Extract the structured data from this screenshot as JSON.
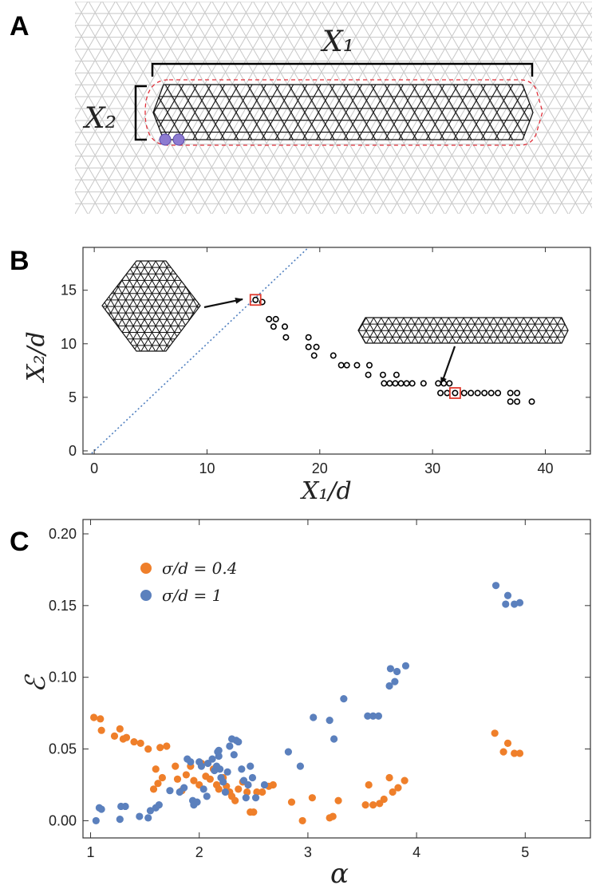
{
  "panels": {
    "a": {
      "letter": "A",
      "x1_label": "X₁",
      "x2_label": "X₂"
    },
    "b": {
      "letter": "B"
    },
    "c": {
      "letter": "C"
    }
  },
  "colors": {
    "lattice": "#c8c8c8",
    "cluster": "#111111",
    "dashed_outline": "#e0303a",
    "particle": "#8d7bd1",
    "blue_series": "#5b80bd",
    "orange_series": "#ef7f2a",
    "diagonal": "#4f7fbf",
    "highlight_box": "#e03a2e"
  },
  "chart_data": [
    {
      "type": "scatter",
      "panel": "B",
      "xlabel": "X₁/d",
      "ylabel": "X₂/d",
      "xlim": [
        -1,
        44
      ],
      "ylim": [
        -0.3,
        19
      ],
      "xticks": [
        0,
        10,
        20,
        30,
        40
      ],
      "yticks": [
        0,
        5,
        10,
        15
      ],
      "reference_line": {
        "style": "dotted",
        "slope": 1,
        "color": "#4f7fbf"
      },
      "highlighted": [
        {
          "x": 14.3,
          "y": 14.1
        },
        {
          "x": 32.0,
          "y": 5.4
        }
      ],
      "points": [
        [
          14.3,
          14.1
        ],
        [
          14.9,
          13.9
        ],
        [
          15.5,
          12.3
        ],
        [
          16.1,
          12.3
        ],
        [
          15.9,
          11.6
        ],
        [
          16.9,
          11.6
        ],
        [
          17.0,
          10.6
        ],
        [
          19.0,
          10.6
        ],
        [
          19.0,
          9.7
        ],
        [
          19.7,
          9.7
        ],
        [
          19.5,
          8.9
        ],
        [
          21.2,
          8.9
        ],
        [
          21.9,
          8.0
        ],
        [
          22.4,
          8.0
        ],
        [
          23.3,
          8.0
        ],
        [
          24.4,
          8.0
        ],
        [
          24.3,
          7.1
        ],
        [
          25.6,
          7.1
        ],
        [
          26.8,
          7.1
        ],
        [
          25.7,
          6.3
        ],
        [
          26.2,
          6.3
        ],
        [
          26.7,
          6.3
        ],
        [
          27.2,
          6.3
        ],
        [
          27.7,
          6.3
        ],
        [
          28.2,
          6.3
        ],
        [
          29.2,
          6.3
        ],
        [
          30.5,
          6.3
        ],
        [
          31.0,
          6.3
        ],
        [
          31.5,
          6.3
        ],
        [
          30.7,
          5.4
        ],
        [
          31.3,
          5.4
        ],
        [
          32.0,
          5.4
        ],
        [
          32.8,
          5.4
        ],
        [
          33.4,
          5.4
        ],
        [
          34.0,
          5.4
        ],
        [
          34.6,
          5.4
        ],
        [
          35.2,
          5.4
        ],
        [
          35.8,
          5.4
        ],
        [
          36.9,
          5.4
        ],
        [
          37.5,
          5.4
        ],
        [
          36.9,
          4.6
        ],
        [
          37.5,
          4.6
        ],
        [
          38.8,
          4.6
        ]
      ]
    },
    {
      "type": "scatter",
      "panel": "C",
      "xlabel": "α",
      "ylabel": "ℰ",
      "xlim": [
        0.93,
        5.6
      ],
      "ylim": [
        -0.012,
        0.21
      ],
      "xticks": [
        1,
        2,
        3,
        4,
        5
      ],
      "yticks": [
        "0.00",
        "0.05",
        "0.10",
        "0.15",
        "0.20"
      ],
      "legend_position": "top-left",
      "series": [
        {
          "name": "σ/d = 0.4",
          "color": "#ef7f2a",
          "points": [
            [
              1.03,
              0.072
            ],
            [
              1.09,
              0.071
            ],
            [
              1.1,
              0.063
            ],
            [
              1.22,
              0.059
            ],
            [
              1.27,
              0.064
            ],
            [
              1.3,
              0.057
            ],
            [
              1.33,
              0.058
            ],
            [
              1.4,
              0.055
            ],
            [
              1.46,
              0.054
            ],
            [
              1.53,
              0.05
            ],
            [
              1.58,
              0.022
            ],
            [
              1.6,
              0.036
            ],
            [
              1.62,
              0.026
            ],
            [
              1.64,
              0.051
            ],
            [
              1.7,
              0.052
            ],
            [
              1.66,
              0.03
            ],
            [
              1.78,
              0.038
            ],
            [
              1.8,
              0.029
            ],
            [
              1.84,
              0.021
            ],
            [
              1.88,
              0.032
            ],
            [
              1.92,
              0.038
            ],
            [
              1.95,
              0.028
            ],
            [
              2.0,
              0.025
            ],
            [
              2.02,
              0.04
            ],
            [
              2.06,
              0.031
            ],
            [
              2.1,
              0.029
            ],
            [
              2.13,
              0.036
            ],
            [
              2.16,
              0.025
            ],
            [
              2.18,
              0.022
            ],
            [
              2.22,
              0.03
            ],
            [
              2.25,
              0.024
            ],
            [
              2.28,
              0.02
            ],
            [
              2.3,
              0.017
            ],
            [
              2.33,
              0.014
            ],
            [
              2.36,
              0.022
            ],
            [
              2.4,
              0.027
            ],
            [
              2.44,
              0.02
            ],
            [
              2.47,
              0.006
            ],
            [
              2.5,
              0.006
            ],
            [
              2.53,
              0.02
            ],
            [
              2.58,
              0.02
            ],
            [
              2.64,
              0.024
            ],
            [
              2.68,
              0.025
            ],
            [
              2.85,
              0.013
            ],
            [
              2.95,
              0.0
            ],
            [
              3.04,
              0.016
            ],
            [
              3.2,
              0.002
            ],
            [
              3.23,
              0.003
            ],
            [
              3.28,
              0.014
            ],
            [
              3.53,
              0.011
            ],
            [
              3.56,
              0.025
            ],
            [
              3.6,
              0.011
            ],
            [
              3.66,
              0.012
            ],
            [
              3.7,
              0.015
            ],
            [
              3.75,
              0.03
            ],
            [
              3.78,
              0.02
            ],
            [
              3.83,
              0.023
            ],
            [
              3.89,
              0.028
            ],
            [
              4.72,
              0.061
            ],
            [
              4.8,
              0.048
            ],
            [
              4.84,
              0.054
            ],
            [
              4.9,
              0.047
            ],
            [
              4.95,
              0.047
            ]
          ]
        },
        {
          "name": "σ/d = 1",
          "color": "#5b80bd",
          "points": [
            [
              1.05,
              0.0
            ],
            [
              1.08,
              0.009
            ],
            [
              1.1,
              0.008
            ],
            [
              1.27,
              0.001
            ],
            [
              1.28,
              0.01
            ],
            [
              1.32,
              0.01
            ],
            [
              1.45,
              0.003
            ],
            [
              1.53,
              0.002
            ],
            [
              1.55,
              0.007
            ],
            [
              1.6,
              0.009
            ],
            [
              1.63,
              0.011
            ],
            [
              1.73,
              0.021
            ],
            [
              1.82,
              0.02
            ],
            [
              1.86,
              0.023
            ],
            [
              1.89,
              0.043
            ],
            [
              1.92,
              0.041
            ],
            [
              1.94,
              0.014
            ],
            [
              1.95,
              0.011
            ],
            [
              1.98,
              0.013
            ],
            [
              2.0,
              0.041
            ],
            [
              2.02,
              0.038
            ],
            [
              2.04,
              0.022
            ],
            [
              2.07,
              0.017
            ],
            [
              2.08,
              0.04
            ],
            [
              2.12,
              0.043
            ],
            [
              2.14,
              0.035
            ],
            [
              2.16,
              0.038
            ],
            [
              2.17,
              0.048
            ],
            [
              2.18,
              0.049
            ],
            [
              2.18,
              0.045
            ],
            [
              2.19,
              0.036
            ],
            [
              2.2,
              0.03
            ],
            [
              2.22,
              0.027
            ],
            [
              2.24,
              0.02
            ],
            [
              2.26,
              0.034
            ],
            [
              2.28,
              0.052
            ],
            [
              2.3,
              0.057
            ],
            [
              2.32,
              0.046
            ],
            [
              2.34,
              0.056
            ],
            [
              2.36,
              0.055
            ],
            [
              2.39,
              0.036
            ],
            [
              2.41,
              0.028
            ],
            [
              2.43,
              0.016
            ],
            [
              2.45,
              0.025
            ],
            [
              2.47,
              0.038
            ],
            [
              2.49,
              0.03
            ],
            [
              2.52,
              0.016
            ],
            [
              2.6,
              0.025
            ],
            [
              2.82,
              0.048
            ],
            [
              2.93,
              0.038
            ],
            [
              3.05,
              0.072
            ],
            [
              3.2,
              0.07
            ],
            [
              3.24,
              0.057
            ],
            [
              3.33,
              0.085
            ],
            [
              3.55,
              0.073
            ],
            [
              3.6,
              0.073
            ],
            [
              3.65,
              0.073
            ],
            [
              3.75,
              0.094
            ],
            [
              3.76,
              0.106
            ],
            [
              3.8,
              0.097
            ],
            [
              3.82,
              0.104
            ],
            [
              3.9,
              0.108
            ],
            [
              4.73,
              0.164
            ],
            [
              4.82,
              0.151
            ],
            [
              4.84,
              0.157
            ],
            [
              4.9,
              0.151
            ],
            [
              4.95,
              0.152
            ]
          ]
        }
      ]
    }
  ]
}
